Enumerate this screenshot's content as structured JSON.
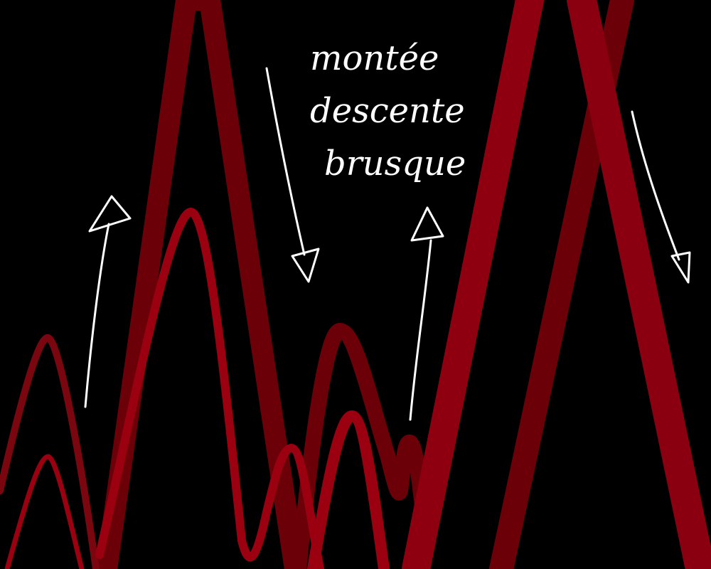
{
  "annotation": {
    "line1": "montée",
    "line2": "descente",
    "line3": "brusque"
  },
  "colors": {
    "background": "#000000",
    "red_bright": "#9b0010",
    "red_mid": "#8a0a14",
    "red_dark": "#6b0008",
    "ink": "#ffffff"
  },
  "arrows": [
    {
      "name": "arrow-up-left",
      "direction": "up"
    },
    {
      "name": "arrow-down-center",
      "direction": "down"
    },
    {
      "name": "arrow-up-center",
      "direction": "up"
    },
    {
      "name": "arrow-down-right",
      "direction": "down"
    }
  ]
}
